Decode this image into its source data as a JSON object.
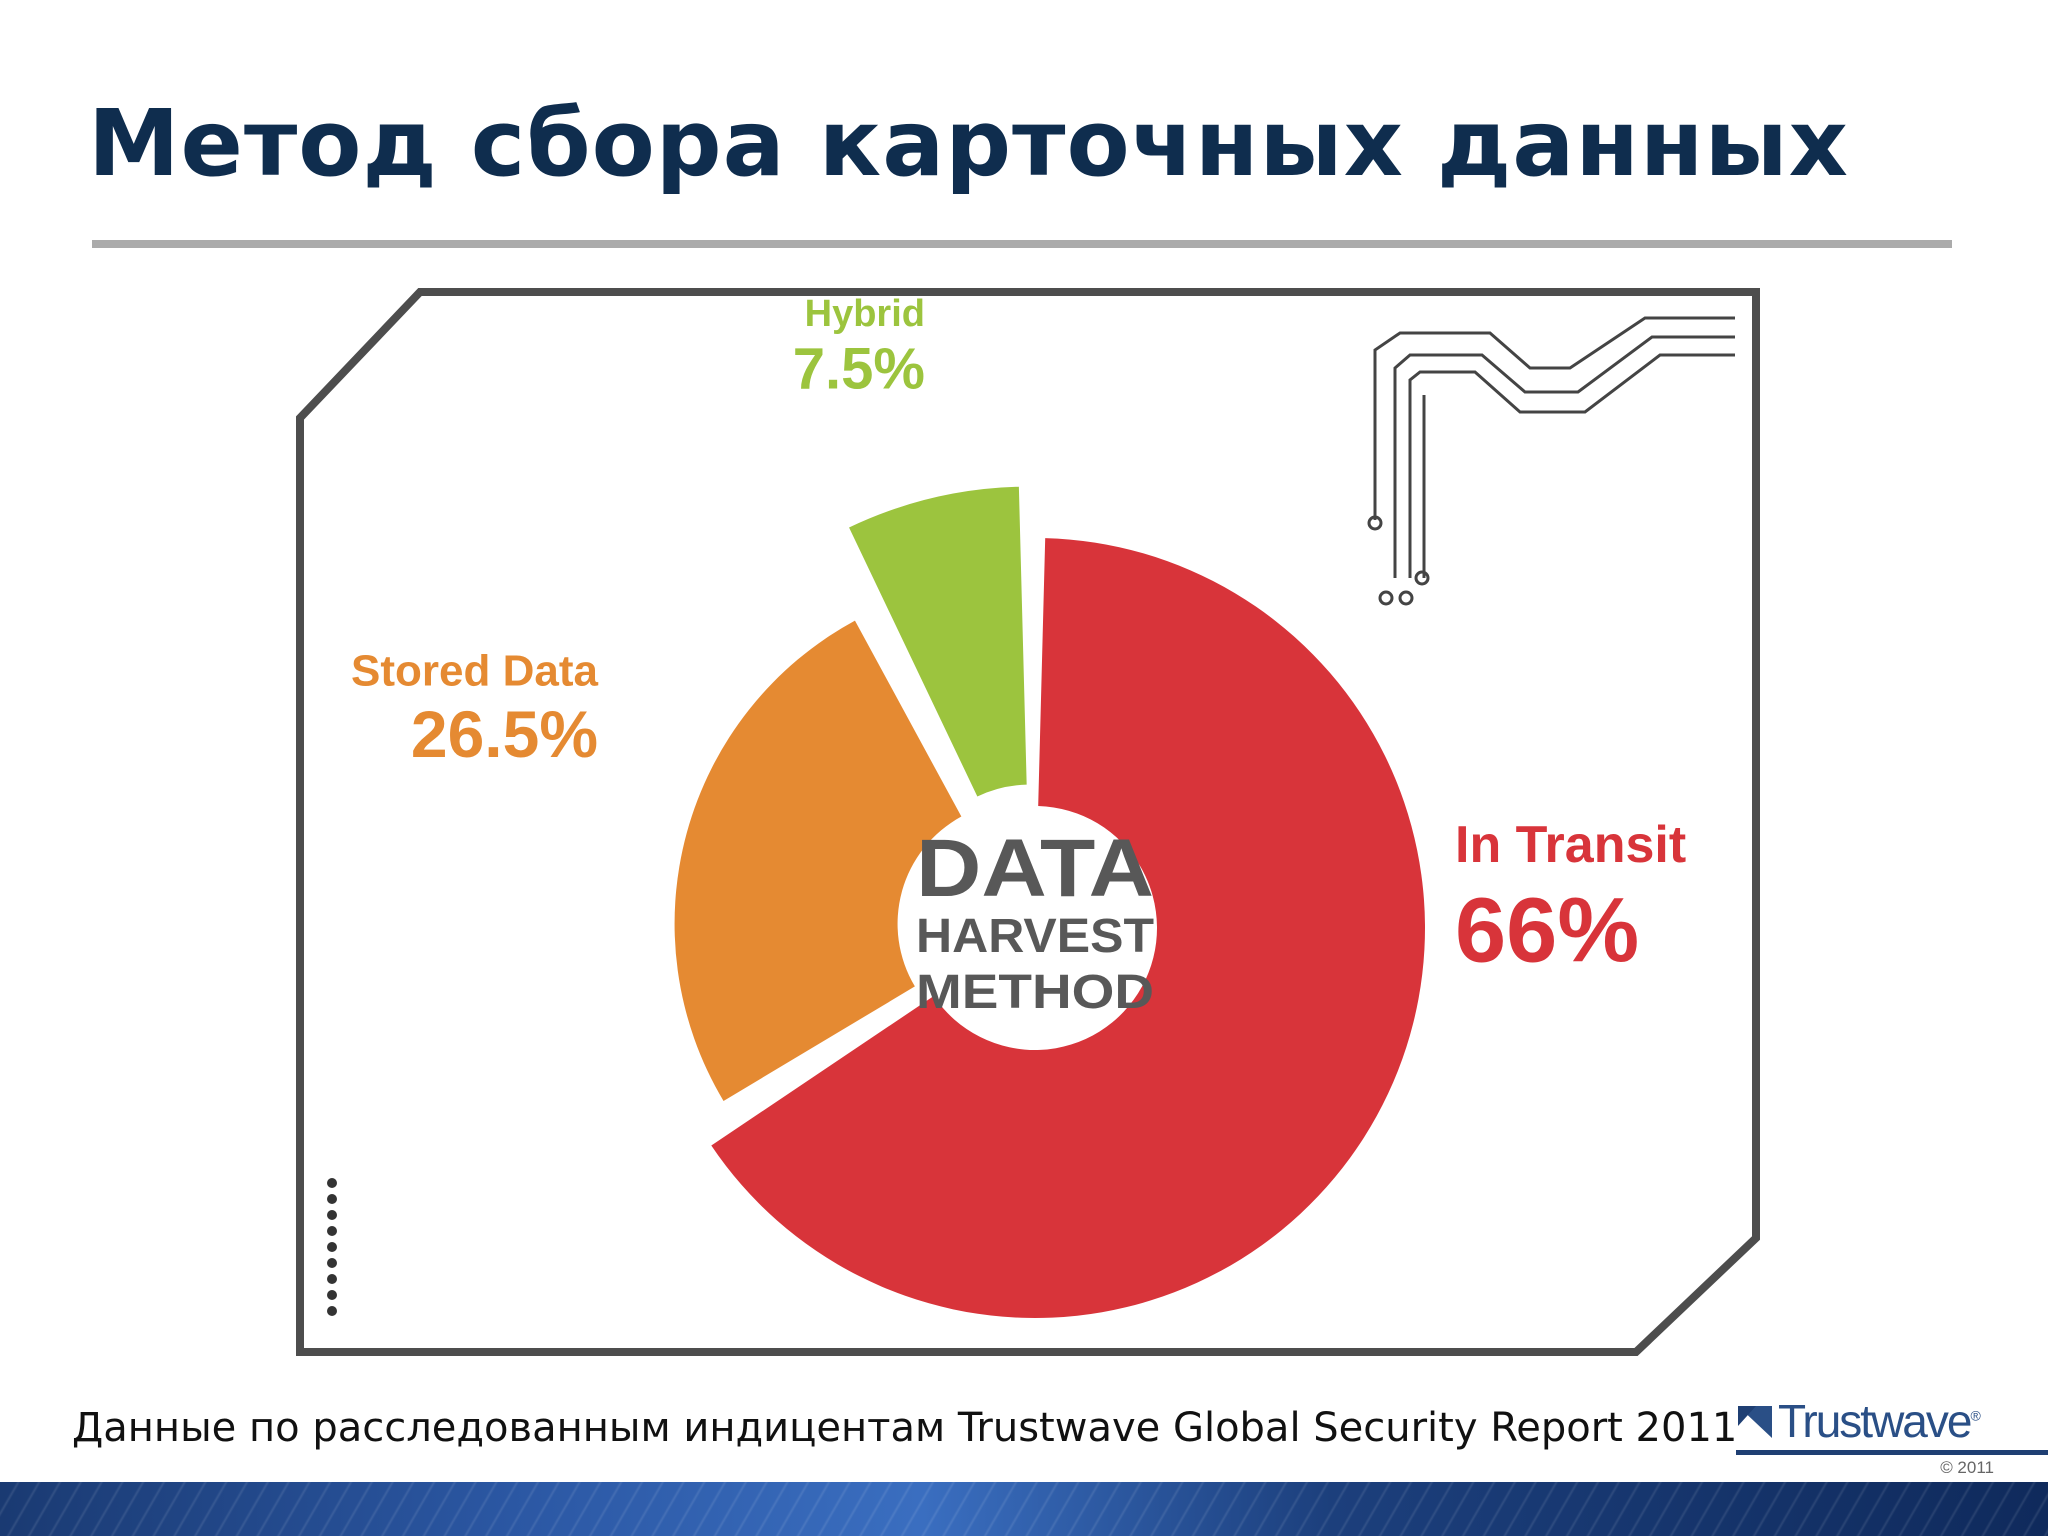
{
  "slide": {
    "title": "Метод сбора карточных данных",
    "caption": "Данные по расследованным индицентам Trustwave Global Security Report 2011"
  },
  "logo": {
    "name": "Trustwave",
    "registered": "®",
    "copyright": "© 2011"
  },
  "chart_data": {
    "type": "pie",
    "style": "donut with exploded slices",
    "center_label": [
      "DATA",
      "HARVEST",
      "METHOD"
    ],
    "slices": [
      {
        "label": "In Transit",
        "value": 66,
        "display": "66%",
        "color": "#d8343a"
      },
      {
        "label": "Stored Data",
        "value": 26.5,
        "display": "26.5%",
        "color": "#e58a32"
      },
      {
        "label": "Hybrid",
        "value": 7.5,
        "display": "7.5%",
        "color": "#9cc43e"
      }
    ],
    "center_color": "#585858",
    "legend": "none"
  }
}
